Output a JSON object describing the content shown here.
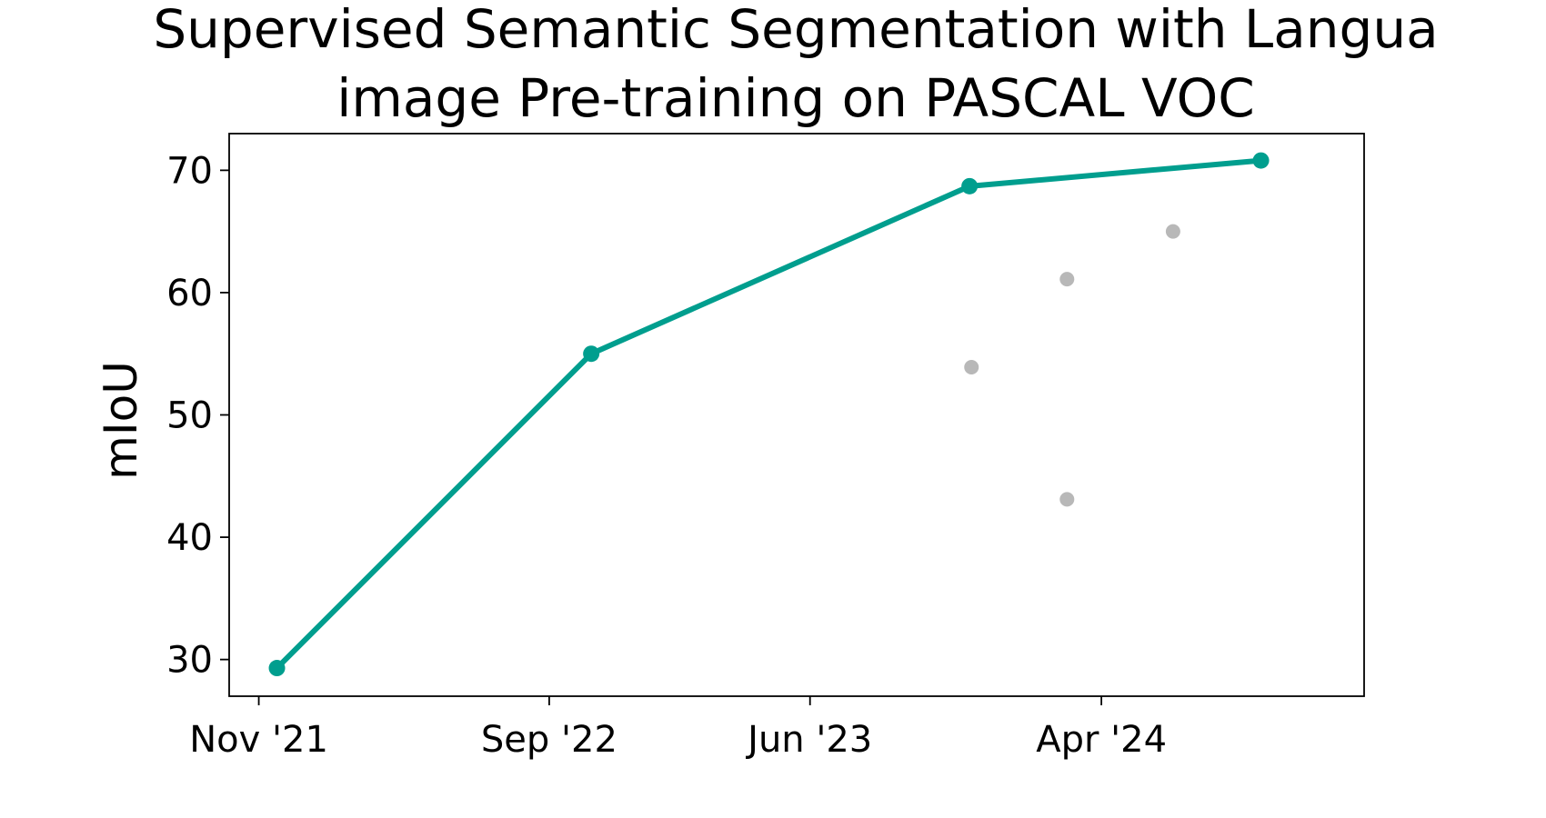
{
  "chart_data": {
    "type": "line",
    "title_lines": [
      "Supervised Semantic Segmentation with Langua",
      "image Pre-training on PASCAL VOC"
    ],
    "xlabel": "",
    "ylabel": "mIoU",
    "x_tick_labels": [
      {
        "date": "2021-11-01",
        "label": "Nov '21"
      },
      {
        "date": "2022-09-01",
        "label": "Sep '22"
      },
      {
        "date": "2023-06-01",
        "label": "Jun '23"
      },
      {
        "date": "2024-04-01",
        "label": "Apr '24"
      }
    ],
    "xlim": [
      "2021-10-01",
      "2025-01-01"
    ],
    "ylim": [
      27,
      73
    ],
    "y_ticks": [
      30,
      40,
      50,
      60,
      70
    ],
    "grid": false,
    "legend": "none",
    "series": [
      {
        "color": "#009e8e",
        "points": [
          {
            "x": "2021-11-20",
            "y": 29.3
          },
          {
            "x": "2022-10-15",
            "y": 55.0
          },
          {
            "x": "2023-11-15",
            "y": 68.7
          },
          {
            "x": "2024-09-15",
            "y": 70.8
          }
        ]
      },
      {
        "color": "#b8b8b8",
        "points": [
          {
            "x": "2023-11-17",
            "y": 53.9
          },
          {
            "x": "2024-02-25",
            "y": 61.1
          },
          {
            "x": "2024-02-25",
            "y": 43.1
          },
          {
            "x": "2024-06-15",
            "y": 65.0
          }
        ]
      }
    ]
  }
}
